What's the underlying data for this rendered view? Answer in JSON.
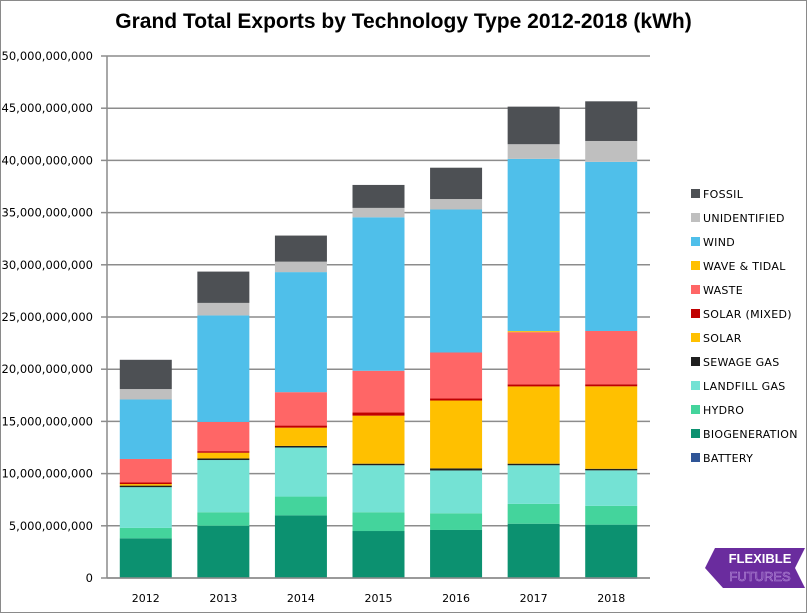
{
  "chart_data": {
    "type": "bar",
    "stacked": true,
    "title": "Grand Total Exports by Technology Type 2012-2018 (kWh)",
    "xlabel": "",
    "ylabel": "",
    "ylim": [
      0,
      50000000000
    ],
    "yticks": [
      0,
      5000000000,
      10000000000,
      15000000000,
      20000000000,
      25000000000,
      30000000000,
      35000000000,
      40000000000,
      45000000000,
      50000000000
    ],
    "ytick_labels": [
      "0",
      "5,000,000,000",
      "10,000,000,000",
      "15,000,000,000",
      "20,000,000,000",
      "25,000,000,000",
      "30,000,000,000",
      "35,000,000,000",
      "40,000,000,000",
      "45,000,000,000",
      "50,000,000,000"
    ],
    "grid": true,
    "legend_position": "right",
    "categories": [
      "2012",
      "2013",
      "2014",
      "2015",
      "2016",
      "2017",
      "2018"
    ],
    "series": [
      {
        "name": "BATTERY",
        "color": "#2f5597",
        "values": [
          0,
          0,
          0,
          0,
          0,
          0,
          10000000
        ]
      },
      {
        "name": "BIOGENERATION",
        "color": "#0c9170",
        "values": [
          3800000000,
          5000000000,
          6000000000,
          4500000000,
          4600000000,
          5200000000,
          5100000000
        ]
      },
      {
        "name": "HYDRO",
        "color": "#44d49c",
        "values": [
          1000000000,
          1300000000,
          1800000000,
          1800000000,
          1600000000,
          1900000000,
          1800000000
        ]
      },
      {
        "name": "LANDFILL GAS",
        "color": "#74e2d4",
        "values": [
          3900000000,
          5000000000,
          4700000000,
          4500000000,
          4100000000,
          3700000000,
          3400000000
        ]
      },
      {
        "name": "SEWAGE GAS",
        "color": "#1f1f1f",
        "values": [
          150000000,
          150000000,
          150000000,
          150000000,
          200000000,
          150000000,
          150000000
        ]
      },
      {
        "name": "SOLAR",
        "color": "#ffc000",
        "values": [
          150000000,
          550000000,
          1750000000,
          4600000000,
          6500000000,
          7400000000,
          7900000000
        ]
      },
      {
        "name": "SOLAR (MIXED)",
        "color": "#c00000",
        "values": [
          150000000,
          150000000,
          200000000,
          300000000,
          200000000,
          200000000,
          200000000
        ]
      },
      {
        "name": "WASTE",
        "color": "#ff6666",
        "values": [
          2250000000,
          2800000000,
          3200000000,
          4000000000,
          4400000000,
          5000000000,
          5100000000
        ]
      },
      {
        "name": "WAVE & TIDAL",
        "color": "#ffc000",
        "values": [
          0,
          0,
          0,
          0,
          0,
          100000000,
          0
        ]
      },
      {
        "name": "WIND",
        "color": "#4fbfea",
        "values": [
          5700000000,
          10200000000,
          11500000000,
          14700000000,
          13700000000,
          16500000000,
          16200000000
        ]
      },
      {
        "name": "UNIDENTIFIED",
        "color": "#bfbfbf",
        "values": [
          1000000000,
          1200000000,
          1000000000,
          900000000,
          1000000000,
          1400000000,
          2000000000
        ]
      },
      {
        "name": "FOSSIL",
        "color": "#4d5054",
        "values": [
          2800000000,
          3000000000,
          2500000000,
          2200000000,
          3000000000,
          3600000000,
          3800000000
        ]
      }
    ],
    "legend_order": [
      "FOSSIL",
      "UNIDENTIFIED",
      "WIND",
      "WAVE & TIDAL",
      "WASTE",
      "SOLAR (MIXED)",
      "SOLAR",
      "SEWAGE GAS",
      "LANDFILL GAS",
      "HYDRO",
      "BIOGENERATION",
      "BATTERY"
    ]
  },
  "logo": {
    "line1": "FLEXIBLE",
    "line2": "FUTURES",
    "color": "#6a2c9e"
  }
}
